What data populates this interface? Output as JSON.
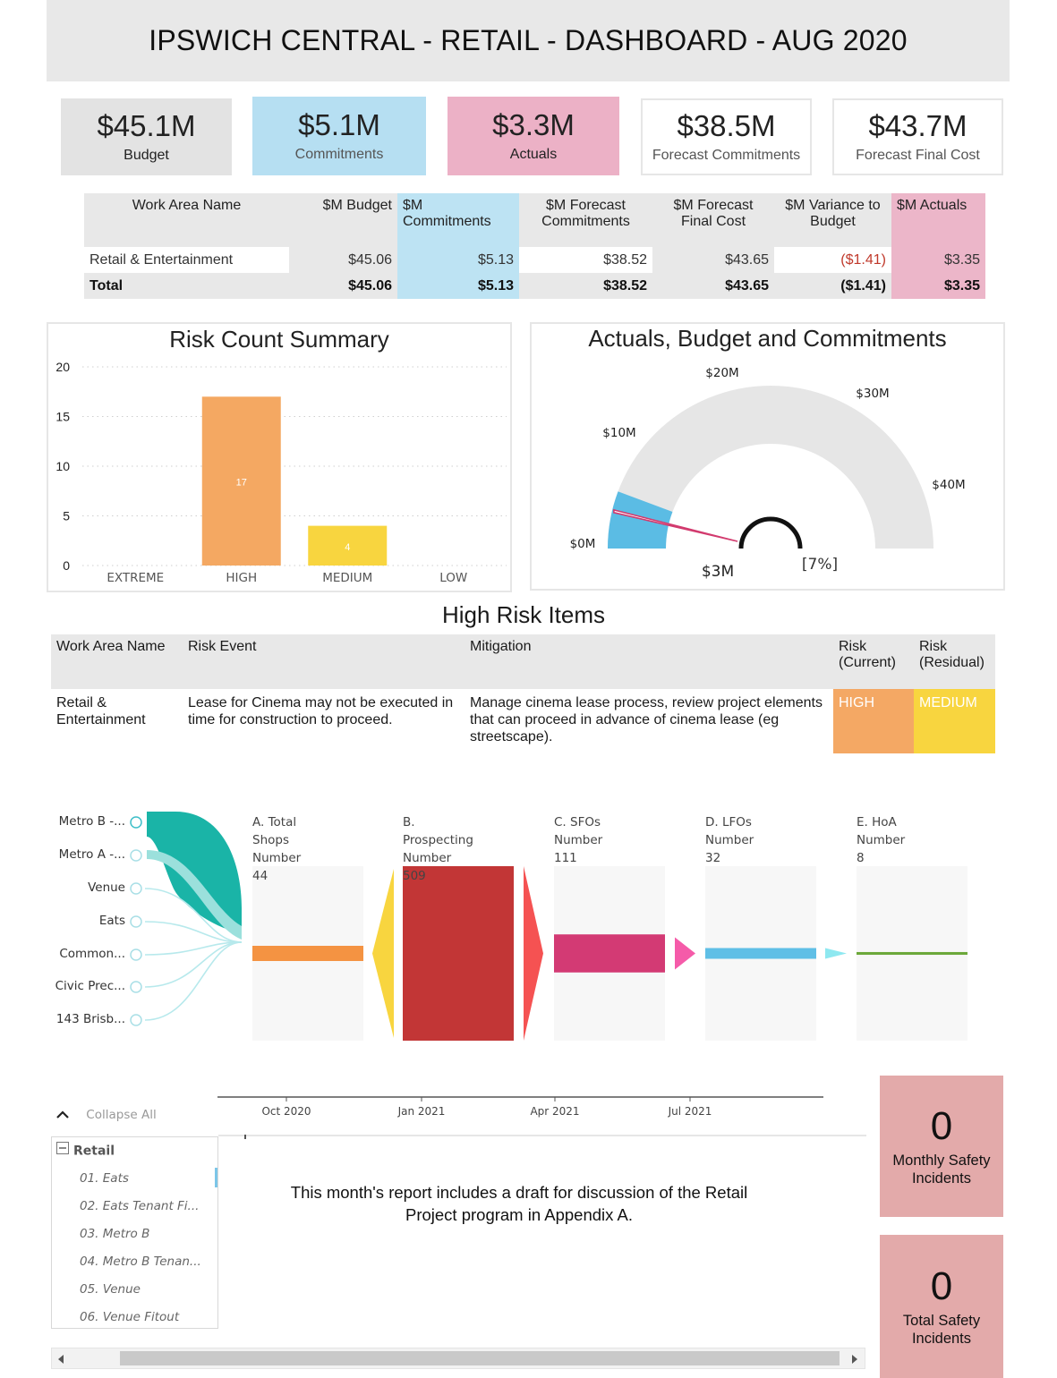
{
  "title": "IPSWICH CENTRAL - RETAIL - DASHBOARD - AUG 2020",
  "kpis": [
    {
      "value": "$45.1M",
      "label": "Budget",
      "bg": "#e3e3e3"
    },
    {
      "value": "$5.1M",
      "label": "Commitments",
      "bg": "#b6dff2"
    },
    {
      "value": "$3.3M",
      "label": "Actuals",
      "bg": "#ecb1c6"
    },
    {
      "value": "$38.5M",
      "label": "Forecast Commitments",
      "bg": "#ffffff"
    },
    {
      "value": "$43.7M",
      "label": "Forecast Final Cost",
      "bg": "#ffffff"
    }
  ],
  "summary_table": {
    "headers": [
      "Work Area Name",
      "$M Budget",
      "$M Commitments",
      "$M Forecast Commitments",
      "$M Forecast Final Cost",
      "$M Variance to Budget",
      "$M Actuals"
    ],
    "rows": [
      [
        "Retail & Entertainment",
        "$45.06",
        "$5.13",
        "$38.52",
        "$43.65",
        "($1.41)",
        "$3.35"
      ],
      [
        "Total",
        "$45.06",
        "$5.13",
        "$38.52",
        "$43.65",
        "($1.41)",
        "$3.35"
      ]
    ]
  },
  "risk_chart": {
    "title": "Risk Count Summary",
    "chart_data": {
      "type": "bar",
      "categories": [
        "EXTREME",
        "HIGH",
        "MEDIUM",
        "LOW"
      ],
      "values": [
        0,
        17,
        4,
        0
      ],
      "data_labels": [
        "",
        "17",
        "4",
        ""
      ],
      "colors": [
        "#f4a862",
        "#f4a862",
        "#f8d53f",
        "#f8d53f"
      ],
      "yticks": [
        "0",
        "5",
        "10",
        "15",
        "20"
      ],
      "ylim": [
        0,
        20
      ],
      "grid": true
    }
  },
  "gauge": {
    "title": "Actuals, Budget and Commitments",
    "ticks": [
      "$0M",
      "$10M",
      "$20M",
      "$30M",
      "$40M"
    ],
    "value_label": "$3M",
    "percent_label": "[7%]",
    "chart_data": {
      "type": "gauge",
      "min": 0,
      "max": 45.06,
      "actuals": 3.35,
      "commitments": 5.13,
      "budget": 45.06,
      "colors": {
        "track": "#e6e6e6",
        "fill": "#5bbce4",
        "needle": "#d23a6e"
      }
    }
  },
  "high_risk": {
    "title": "High Risk Items",
    "headers": [
      "Work Area Name",
      "Risk Event",
      "Mitigation",
      "Risk (Current)",
      "Risk (Residual)"
    ],
    "rows": [
      [
        "Retail & Entertainment",
        "Lease for Cinema may not be executed in time for construction to proceed.",
        "Manage cinema lease process, review project elements that can proceed in advance of cinema lease (eg streetscape).",
        "HIGH",
        "MEDIUM"
      ]
    ]
  },
  "funnel": {
    "sources": [
      "Metro B -...",
      "Metro A -...",
      "Venue",
      "Eats",
      "Common...",
      "Civic Prec...",
      "143 Brisb..."
    ],
    "stages": [
      {
        "name": "A. Total Shops",
        "metric": "Number",
        "value": "44",
        "color": "#f49342"
      },
      {
        "name": "B. Prospecting",
        "metric": "Number",
        "value": "509",
        "color": "#c23636"
      },
      {
        "name": "C. SFOs",
        "metric": "Number",
        "value": "111",
        "color": "#d33a74"
      },
      {
        "name": "D. LFOs",
        "metric": "Number",
        "value": "32",
        "color": "#5fbfe6"
      },
      {
        "name": "E. HoA",
        "metric": "Number",
        "value": "8",
        "color": "#6ca83a"
      }
    ],
    "connector_colors": [
      "#f8d53f",
      "#f55252",
      "#f55ba9",
      "#8ee8f0"
    ],
    "chart_data": {
      "type": "bar",
      "categories": [
        "A. Total Shops",
        "B. Prospecting",
        "C. SFOs",
        "D. LFOs",
        "E. HoA"
      ],
      "values": [
        44,
        509,
        111,
        32,
        8
      ]
    }
  },
  "timeline": {
    "ticks": [
      "Oct 2020",
      "Jan 2021",
      "Apr 2021",
      "Jul 2021"
    ]
  },
  "tree": {
    "collapse_label": "Collapse All",
    "root": "Retail",
    "items": [
      "01. Eats",
      "02. Eats Tenant Fi...",
      "03. Metro B",
      "04. Metro B Tenan...",
      "05. Venue",
      "06. Venue Fitout"
    ]
  },
  "note": "This month's report includes a draft for discussion of the Retail Project program in Appendix A.",
  "safety": [
    {
      "value": "0",
      "label": "Monthly  Safety Incidents"
    },
    {
      "value": "0",
      "label": "Total Safety Incidents"
    }
  ]
}
